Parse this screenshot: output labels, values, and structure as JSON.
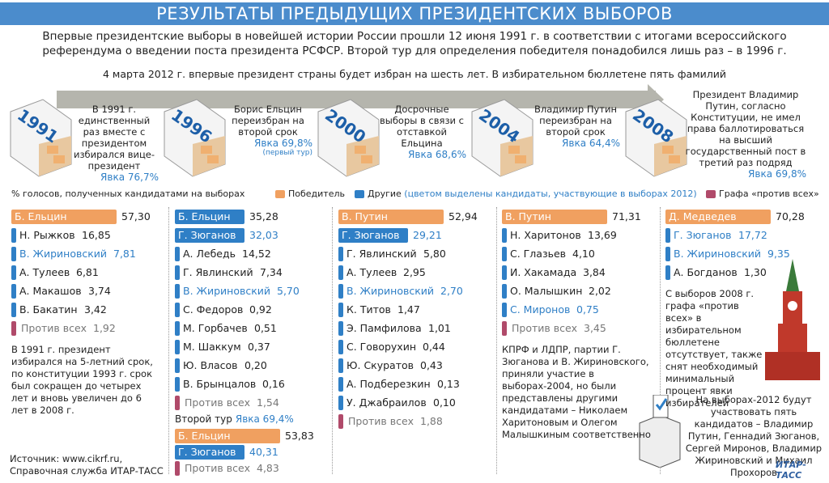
{
  "header": {
    "title": "РЕЗУЛЬТАТЫ ПРЕДЫДУЩИХ ПРЕЗИДЕНТСКИХ ВЫБОРОВ",
    "intro": "Впервые президентские выборы в новейшей истории России прошли 12 июня 1991 г. в соответствии с итогами всероссийского референдума о введении поста президента РСФСР. Второй тур для определения победителя понадобился лишь раз – в 1996 г.",
    "subintro": "4 марта 2012 г. впервые президент страны будет избран на шесть лет. В избирательном бюллетене пять фамилий"
  },
  "timeline": [
    {
      "year": "1991",
      "text": "В 1991 г. единственный раз вместе с президентом избирался вице-президент",
      "turnout": "Явка 76,7%"
    },
    {
      "year": "1996",
      "text": "Борис Ельцин переизбран на второй срок",
      "turnout": "Явка 69,8%",
      "turnout_note": "(первый тур)"
    },
    {
      "year": "2000",
      "text": "Досрочные выборы в связи с отставкой Ельцина",
      "turnout": "Явка 68,6%"
    },
    {
      "year": "2004",
      "text": "Владимир Путин переизбран на второй срок",
      "turnout": "Явка 64,4%"
    },
    {
      "year": "2008",
      "text": "Президент Владимир Путин, согласно Конституции, не имел права баллотироваться на высший государственный пост в третий раз подряд",
      "turnout": "Явка 69,8%"
    }
  ],
  "legend": {
    "caption": "% голосов, полученных кандидатами на выборах",
    "winner": "Победитель",
    "others": "Другие",
    "highlight": "(цветом выделены кандидаты, участвующие в выборах 2012)",
    "against": "Графа «против всех»"
  },
  "columns": [
    {
      "candidates": [
        {
          "name": "Б. Ельцин",
          "value": "57,30",
          "kind": "winner"
        },
        {
          "name": "Н. Рыжков",
          "value": "16,85",
          "kind": "other"
        },
        {
          "name": "В. Жириновский",
          "value": "7,81",
          "kind": "highlight"
        },
        {
          "name": "А. Тулеев",
          "value": "6,81",
          "kind": "other"
        },
        {
          "name": "А. Макашов",
          "value": "3,74",
          "kind": "other"
        },
        {
          "name": "В. Бакатин",
          "value": "3,42",
          "kind": "other"
        },
        {
          "name": "Против всех",
          "value": "1,92",
          "kind": "against"
        }
      ],
      "note": "В 1991 г. президент избирался на 5-летний срок, по конституции 1993 г. срок был сокращен до четырех лет и вновь увеличен до 6 лет в 2008 г."
    },
    {
      "candidates": [
        {
          "name": "Б. Ельцин",
          "value": "35,28",
          "kind": "leader"
        },
        {
          "name": "Г. Зюганов",
          "value": "32,03",
          "kind": "leader-highlight"
        },
        {
          "name": "А. Лебедь",
          "value": "14,52",
          "kind": "other"
        },
        {
          "name": "Г. Явлинский",
          "value": "7,34",
          "kind": "other"
        },
        {
          "name": "В. Жириновский",
          "value": "5,70",
          "kind": "highlight"
        },
        {
          "name": "С. Федоров",
          "value": "0,92",
          "kind": "other"
        },
        {
          "name": "М. Горбачев",
          "value": "0,51",
          "kind": "other"
        },
        {
          "name": "М. Шаккум",
          "value": "0,37",
          "kind": "other"
        },
        {
          "name": "Ю. Власов",
          "value": "0,20",
          "kind": "other"
        },
        {
          "name": "В. Брынцалов",
          "value": "0,16",
          "kind": "other"
        },
        {
          "name": "Против всех",
          "value": "1,54",
          "kind": "against"
        }
      ],
      "second_round": {
        "label": "Второй тур",
        "turnout": "Явка 69,4%",
        "candidates": [
          {
            "name": "Б. Ельцин",
            "value": "53,83",
            "kind": "winner"
          },
          {
            "name": "Г. Зюганов",
            "value": "40,31",
            "kind": "leader-highlight"
          },
          {
            "name": "Против всех",
            "value": "4,83",
            "kind": "against"
          }
        ]
      }
    },
    {
      "candidates": [
        {
          "name": "В. Путин",
          "value": "52,94",
          "kind": "winner"
        },
        {
          "name": "Г. Зюганов",
          "value": "29,21",
          "kind": "leader-highlight"
        },
        {
          "name": "Г. Явлинский",
          "value": "5,80",
          "kind": "other"
        },
        {
          "name": "А. Тулеев",
          "value": "2,95",
          "kind": "other"
        },
        {
          "name": "В. Жириновский",
          "value": "2,70",
          "kind": "highlight"
        },
        {
          "name": "К. Титов",
          "value": "1,47",
          "kind": "other"
        },
        {
          "name": "Э. Памфилова",
          "value": "1,01",
          "kind": "other"
        },
        {
          "name": "С. Говорухин",
          "value": "0,44",
          "kind": "other"
        },
        {
          "name": "Ю. Скуратов",
          "value": "0,43",
          "kind": "other"
        },
        {
          "name": "А. Подберезкин",
          "value": "0,13",
          "kind": "other"
        },
        {
          "name": "У. Джабраилов",
          "value": "0,10",
          "kind": "other"
        },
        {
          "name": "Против всех",
          "value": "1,88",
          "kind": "against"
        }
      ]
    },
    {
      "candidates": [
        {
          "name": "В. Путин",
          "value": "71,31",
          "kind": "winner"
        },
        {
          "name": "Н. Харитонов",
          "value": "13,69",
          "kind": "other"
        },
        {
          "name": "С. Глазьев",
          "value": "4,10",
          "kind": "other"
        },
        {
          "name": "И. Хакамада",
          "value": "3,84",
          "kind": "other"
        },
        {
          "name": "О. Малышкин",
          "value": "2,02",
          "kind": "other"
        },
        {
          "name": "С. Миронов",
          "value": "0,75",
          "kind": "highlight"
        },
        {
          "name": "Против всех",
          "value": "3,45",
          "kind": "against"
        }
      ],
      "note": "КПРФ и ЛДПР, партии Г. Зюганова и В. Жириновского, приняли участие в выборах-2004, но были представлены другими кандидатами – Николаем Харитоновым и Олегом Малышкиным соответственно"
    },
    {
      "candidates": [
        {
          "name": "Д. Медведев",
          "value": "70,28",
          "kind": "winner"
        },
        {
          "name": "Г. Зюганов",
          "value": "17,72",
          "kind": "highlight"
        },
        {
          "name": "В. Жириновский",
          "value": "9,35",
          "kind": "highlight"
        },
        {
          "name": "А. Богданов",
          "value": "1,30",
          "kind": "other"
        }
      ],
      "note": "С выборов 2008 г. графа «против всех» в избирательном бюллетене отсутствует, также снят необходимый минимальный процент явки избирателей"
    }
  ],
  "footer": {
    "box_note": "На выборах-2012 будут участвовать пять кандидатов – Владимир Путин, Геннадий Зюганов, Сергей Миронов, Владимир Жириновский и Михаил Прохоров",
    "source": "Источник: www.cikrf.ru, Справочная служба ИТАР-ТАСС",
    "logo": "ИТАР-ТАСС"
  }
}
